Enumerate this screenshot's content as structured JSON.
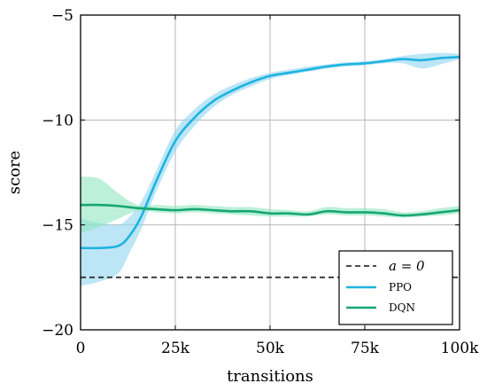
{
  "chart_data": {
    "type": "line",
    "xlabel": "transitions",
    "ylabel": "score",
    "xlim": [
      0,
      100000
    ],
    "ylim": [
      -20,
      -5
    ],
    "grid": true,
    "legend_position": "bottom-right",
    "x_ticks": [
      {
        "value": 0,
        "label": "0"
      },
      {
        "value": 25000,
        "label": "25k"
      },
      {
        "value": 50000,
        "label": "50k"
      },
      {
        "value": 75000,
        "label": "75k"
      },
      {
        "value": 100000,
        "label": "100k"
      }
    ],
    "y_ticks": [
      {
        "value": -5,
        "label": "−5"
      },
      {
        "value": -10,
        "label": "−10"
      },
      {
        "value": -15,
        "label": "−15"
      },
      {
        "value": -20,
        "label": "−20"
      }
    ],
    "baseline": {
      "name": "a = 0",
      "value": -17.5,
      "color": "#333333",
      "style": "dashed"
    },
    "series": [
      {
        "name": "PPO",
        "color": "#1fb3e0",
        "band_color": "#8fd6f0",
        "x": [
          0,
          5000,
          10000,
          13000,
          16000,
          20000,
          25000,
          30000,
          35000,
          40000,
          45000,
          50000,
          55000,
          60000,
          65000,
          70000,
          75000,
          80000,
          85000,
          90000,
          95000,
          100000
        ],
        "mean": [
          -16.1,
          -16.1,
          -16.0,
          -15.5,
          -14.6,
          -12.9,
          -11.0,
          -9.9,
          -9.1,
          -8.6,
          -8.2,
          -7.9,
          -7.75,
          -7.6,
          -7.45,
          -7.35,
          -7.3,
          -7.2,
          -7.1,
          -7.15,
          -7.05,
          -7.0
        ],
        "lower": [
          -17.9,
          -17.7,
          -17.3,
          -16.3,
          -15.2,
          -13.4,
          -11.5,
          -10.3,
          -9.4,
          -8.8,
          -8.4,
          -8.05,
          -7.85,
          -7.7,
          -7.55,
          -7.45,
          -7.4,
          -7.3,
          -7.3,
          -7.55,
          -7.35,
          -7.1
        ],
        "upper": [
          -14.7,
          -14.9,
          -15.0,
          -14.6,
          -13.9,
          -12.4,
          -10.5,
          -9.5,
          -8.8,
          -8.35,
          -8.0,
          -7.75,
          -7.6,
          -7.45,
          -7.35,
          -7.25,
          -7.2,
          -7.1,
          -6.95,
          -6.85,
          -6.8,
          -6.85
        ]
      },
      {
        "name": "DQN",
        "color": "#17a673",
        "band_color": "#8fe6c0",
        "x": [
          0,
          5000,
          10000,
          15000,
          20000,
          25000,
          30000,
          35000,
          40000,
          45000,
          50000,
          55000,
          60000,
          65000,
          70000,
          75000,
          80000,
          85000,
          90000,
          95000,
          100000
        ],
        "mean": [
          -14.05,
          -14.05,
          -14.1,
          -14.2,
          -14.25,
          -14.3,
          -14.25,
          -14.3,
          -14.35,
          -14.35,
          -14.45,
          -14.45,
          -14.5,
          -14.35,
          -14.4,
          -14.4,
          -14.45,
          -14.55,
          -14.5,
          -14.4,
          -14.3
        ],
        "lower": [
          -15.4,
          -15.1,
          -14.7,
          -14.35,
          -14.4,
          -14.45,
          -14.4,
          -14.45,
          -14.5,
          -14.55,
          -14.6,
          -14.6,
          -14.6,
          -14.5,
          -14.55,
          -14.55,
          -14.6,
          -14.65,
          -14.6,
          -14.55,
          -14.45
        ],
        "upper": [
          -12.7,
          -12.8,
          -13.5,
          -14.05,
          -14.05,
          -14.1,
          -14.05,
          -14.1,
          -14.15,
          -14.15,
          -14.25,
          -14.3,
          -14.35,
          -14.15,
          -14.2,
          -14.2,
          -14.25,
          -14.4,
          -14.35,
          -14.2,
          -14.1
        ]
      }
    ]
  }
}
